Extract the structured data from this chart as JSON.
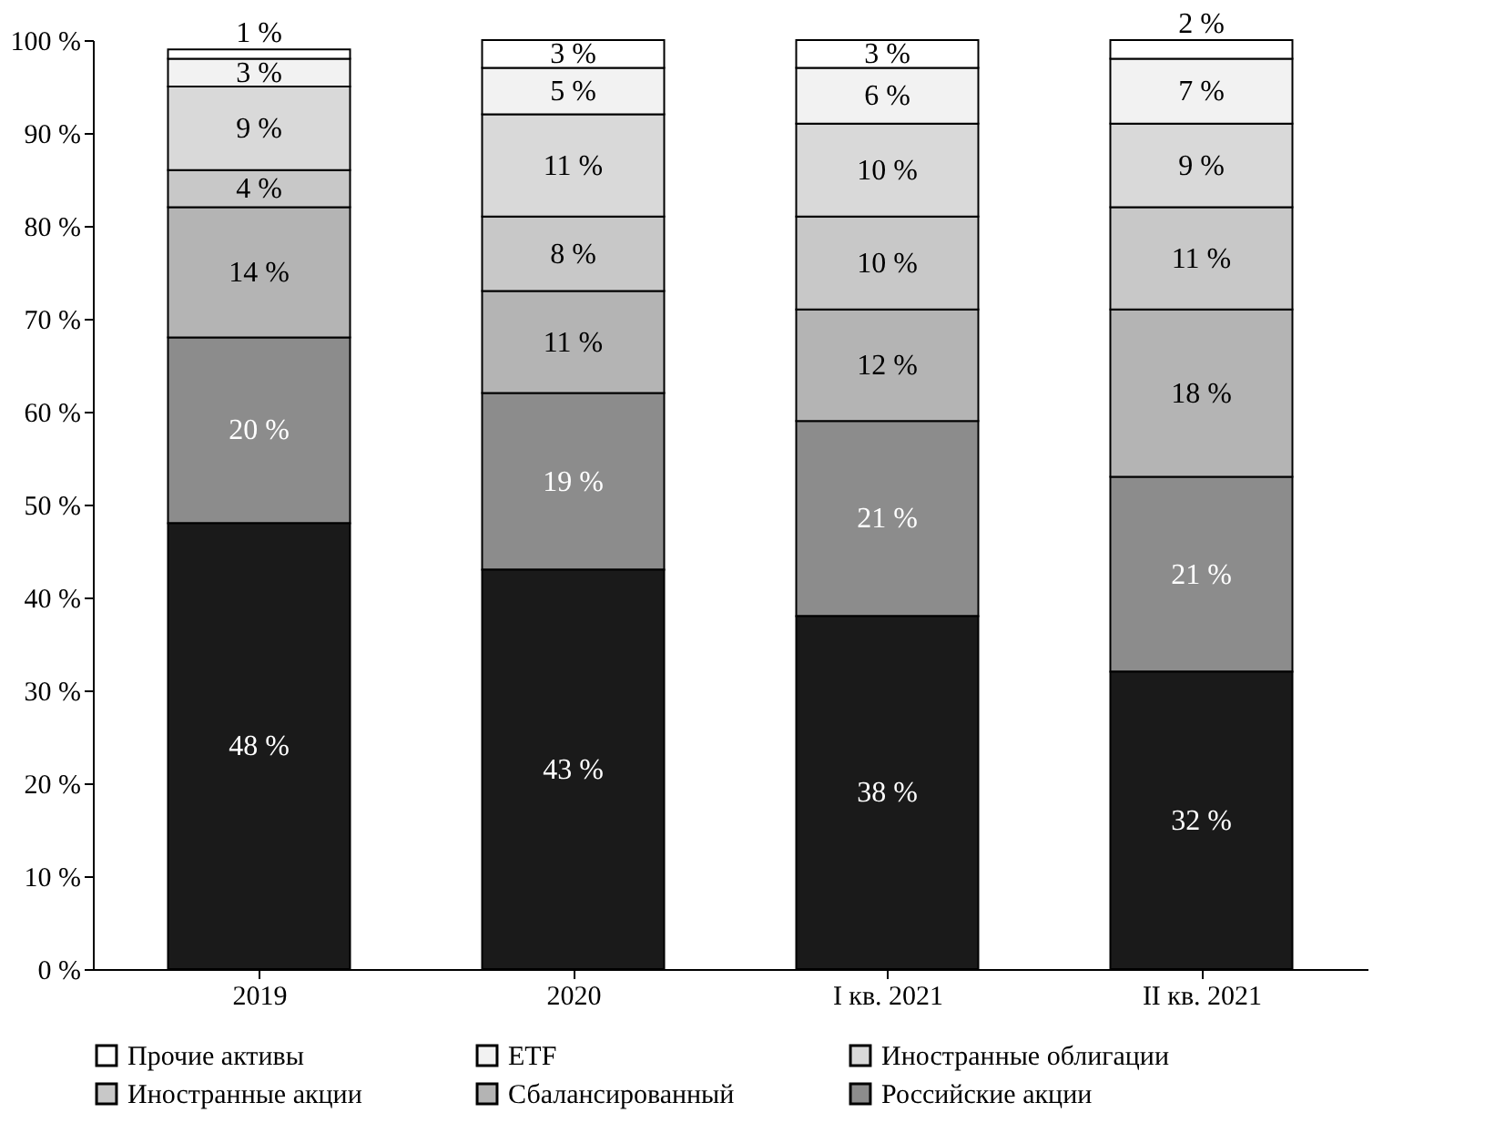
{
  "chart_data": {
    "type": "bar",
    "stacked": true,
    "categories": [
      "2019",
      "2020",
      "I кв. 2021",
      "II кв. 2021"
    ],
    "series": [
      {
        "color": "#1a1a1a",
        "values": [
          48,
          43,
          38,
          32
        ]
      },
      {
        "name": "Российские акции",
        "color": "#8c8c8c",
        "values": [
          20,
          19,
          21,
          21
        ]
      },
      {
        "name": "Сбалансированный",
        "color": "#b4b4b4",
        "values": [
          14,
          11,
          12,
          18
        ]
      },
      {
        "name": "Иностранные акции",
        "color": "#c8c8c8",
        "values": [
          4,
          8,
          10,
          11
        ]
      },
      {
        "name": "Иностранные облигации",
        "color": "#d9d9d9",
        "values": [
          9,
          11,
          10,
          9
        ]
      },
      {
        "name": "ETF",
        "color": "#f2f2f2",
        "values": [
          3,
          5,
          6,
          7
        ]
      },
      {
        "name": "Прочие активы",
        "color": "#ffffff",
        "values": [
          1,
          3,
          3,
          2
        ]
      }
    ],
    "value_labels": [
      [
        "48 %",
        "43 %",
        "38 %",
        "32 %"
      ],
      [
        "20 %",
        "19 %",
        "21 %",
        "21 %"
      ],
      [
        "14 %",
        "11 %",
        "12 %",
        "18 %"
      ],
      [
        "4 %",
        "8 %",
        "10 %",
        "11 %"
      ],
      [
        "9 %",
        "11 %",
        "10 %",
        "9 %"
      ],
      [
        "3 %",
        "5 %",
        "6 %",
        "7 %"
      ],
      [
        "1 %",
        "3 %",
        "3 %",
        "2 %"
      ]
    ],
    "ylim": [
      0,
      100
    ],
    "yticks": [
      {
        "value": 0,
        "label": "0 %"
      },
      {
        "value": 10,
        "label": "10 %"
      },
      {
        "value": 20,
        "label": "20 %"
      },
      {
        "value": 30,
        "label": "30 %"
      },
      {
        "value": 40,
        "label": "40 %"
      },
      {
        "value": 50,
        "label": "50 %"
      },
      {
        "value": 60,
        "label": "60 %"
      },
      {
        "value": 70,
        "label": "70 %"
      },
      {
        "value": 80,
        "label": "80 %"
      },
      {
        "value": 90,
        "label": "90 %"
      },
      {
        "value": 100,
        "label": "100 %"
      }
    ],
    "grid": false,
    "legend": "bottom"
  }
}
